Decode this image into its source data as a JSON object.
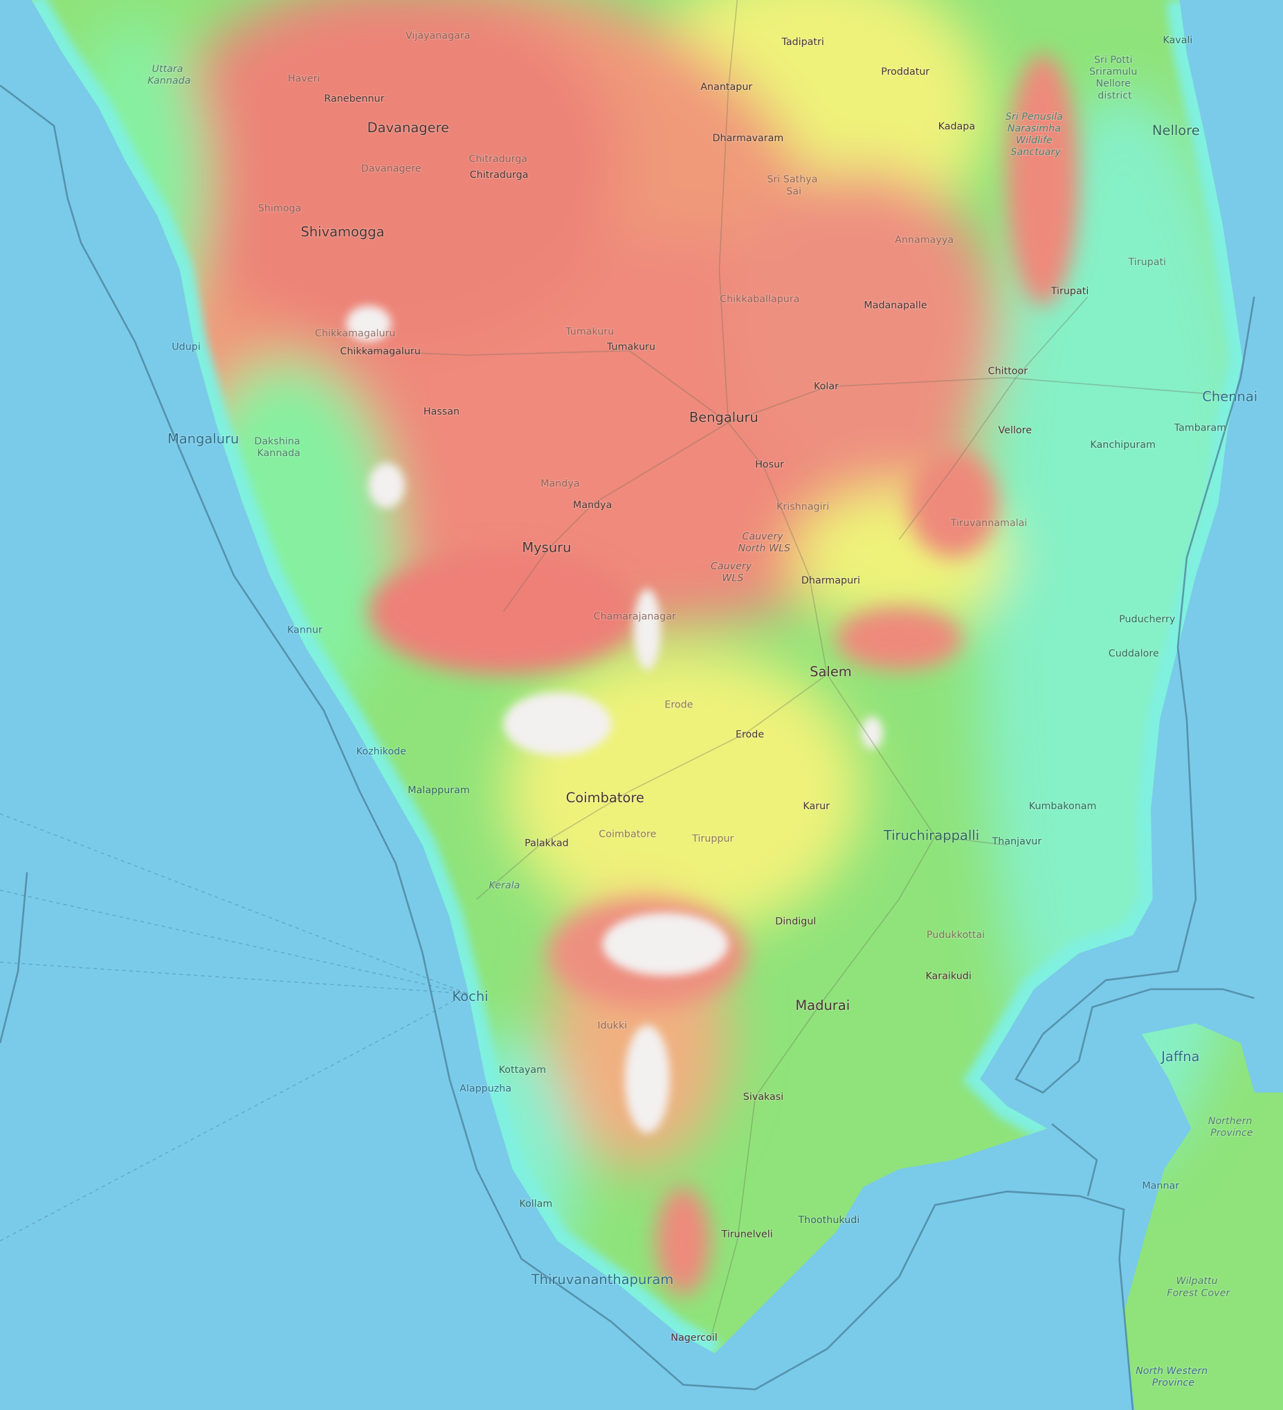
{
  "map": {
    "type": "topographic",
    "colors": {
      "ocean": "#79cbe9",
      "lowland": "#7ff0d4",
      "plain": "#8fe37a",
      "mid": "#f2f07a",
      "high": "#ee8a7c",
      "peak": "#f2f2f2"
    },
    "labels": {
      "vijayanagara": "Vijayanagara",
      "haveri": "Haveri",
      "ranebennur": "Ranebennur",
      "uttara_kannada": "Uttara Kannada",
      "davanagere_city": "Davanagere",
      "davanagere_district": "Davanagere",
      "chitradurga_district": "Chitradurga",
      "chitradurga_city": "Chitradurga",
      "shimoga": "Shimoga",
      "shivamogga": "Shivamogga",
      "tadipatri": "Tadipatri",
      "kavali": "Kavali",
      "proddatur": "Proddatur",
      "anantapur": "Anantapur",
      "nellore_district": "Sri Potti Sriramulu Nellore district",
      "kadapa": "Kadapa",
      "penusila": "Sri Penusila Narasimha Wildlife Sanctuary",
      "nellore": "Nellore",
      "dharmavaram": "Dharmavaram",
      "sri_sathya_sai": "Sri Sathya Sai",
      "annamayya": "Annamayya",
      "tirupati_district": "Tirupati",
      "tirupati": "Tirupati",
      "chikkaballapura": "Chikkaballapura",
      "madanapalle": "Madanapalle",
      "udupi": "Udupi",
      "chikkamagaluru_district": "Chikkamagaluru",
      "chikkamagaluru": "Chikkamagaluru",
      "tumakuru_district": "Tumakuru",
      "tumakuru": "Tumakuru",
      "chittoor": "Chittoor",
      "chennai": "Chennai",
      "kolar": "Kolar",
      "hassan": "Hassan",
      "bengaluru": "Bengaluru",
      "vellore": "Vellore",
      "kanchipuram": "Kanchipuram",
      "tambaram": "Tambaram",
      "mangaluru": "Mangaluru",
      "dakshina_kannada": "Dakshina Kannada",
      "hosur": "Hosur",
      "mandya_district": "Mandya",
      "mandya": "Mandya",
      "krishnagiri": "Krishnagiri",
      "tiruvannamalai": "Tiruvannamalai",
      "cauvery_north": "Cauvery North WLS",
      "mysuru": "Mysuru",
      "cauvery_wls": "Cauvery WLS",
      "dharmapuri": "Dharmapuri",
      "chamarajanagar": "Chamarajanagar",
      "kannur": "Kannur",
      "puducherry": "Puducherry",
      "cuddalore": "Cuddalore",
      "salem": "Salem",
      "erode_district": "Erode",
      "erode": "Erode",
      "kozhikode": "Kozhikode",
      "malappuram": "Malappuram",
      "coimbatore": "Coimbatore",
      "karur": "Karur",
      "kumbakonam": "Kumbakonam",
      "tiruchirappalli": "Tiruchirappalli",
      "thanjavur": "Thanjavur",
      "palakkad": "Palakkad",
      "coimbatore_district": "Coimbatore",
      "tiruppur": "Tiruppur",
      "kerala": "Kerala",
      "dindigul": "Dindigul",
      "pudukkottai": "Pudukkottai",
      "karaikudi": "Karaikudi",
      "kochi": "Kochi",
      "madurai": "Madurai",
      "idukki": "Idukki",
      "jaffna": "Jaffna",
      "kottayam": "Kottayam",
      "alappuzha": "Alappuzha",
      "sivakasi": "Sivakasi",
      "northern_province": "Northern Province",
      "mannar": "Mannar",
      "kollam": "Kollam",
      "thoothukudi": "Thoothukudi",
      "tirunelveli": "Tirunelveli",
      "wilpattu": "Wilpattu Forest Cover",
      "thiruvananthapuram": "Thiruvananthapuram",
      "nagercoil": "Nagercoil",
      "north_western_province": "North Western Province"
    }
  }
}
